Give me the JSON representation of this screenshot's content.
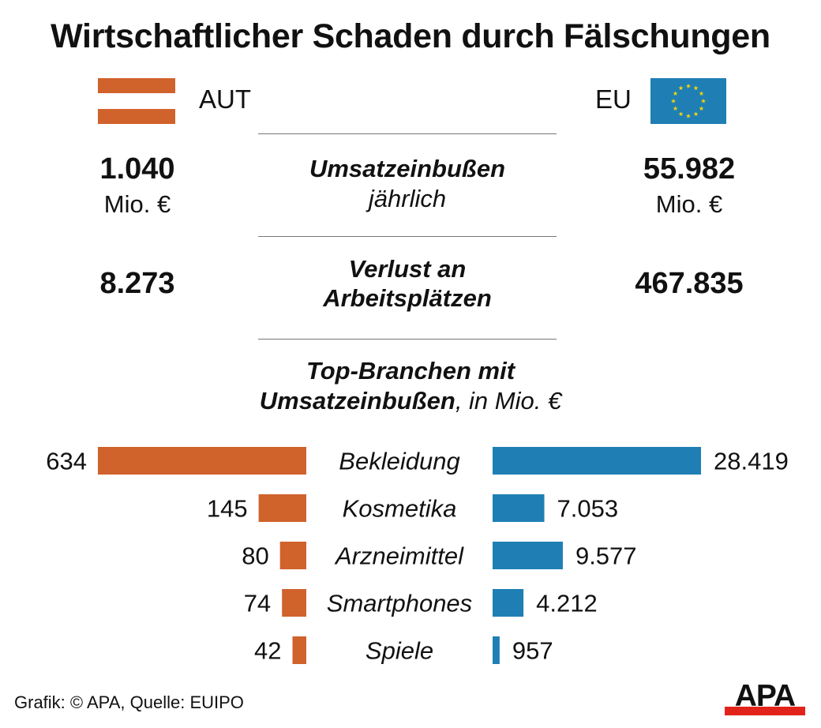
{
  "title": "Wirtschaftlicher Schaden durch Fälschungen",
  "left_label": "AUT",
  "right_label": "EU",
  "stats": {
    "revenue": {
      "label": "Umsatzeinbußen",
      "sublabel": "jährlich",
      "aut": "1.040",
      "eu": "55.982",
      "unit": "Mio. €"
    },
    "jobs": {
      "label_line1": "Verlust an",
      "label_line2": "Arbeitsplätzen",
      "aut": "8.273",
      "eu": "467.835"
    }
  },
  "branches_heading": {
    "line1": "Top-Branchen mit",
    "line2_bold": "Umsatzeinbußen",
    "line2_rest": ", in Mio. €"
  },
  "chart_data": {
    "type": "bar",
    "orientation": "horizontal-butterfly",
    "categories": [
      "Bekleidung",
      "Kosmetika",
      "Arzneimittel",
      "Smartphones",
      "Spiele"
    ],
    "series": [
      {
        "name": "AUT",
        "values": [
          634,
          145,
          80,
          74,
          42
        ],
        "labels": [
          "634",
          "145",
          "80",
          "74",
          "42"
        ],
        "color": "#d0622c"
      },
      {
        "name": "EU",
        "values": [
          28419,
          7053,
          9577,
          4212,
          957
        ],
        "labels": [
          "28.419",
          "7.053",
          "9.577",
          "4.212",
          "957"
        ],
        "color": "#1f7fb4"
      }
    ]
  },
  "footer": "Grafik: © APA, Quelle: EUIPO",
  "logo_text": "APA",
  "colors": {
    "aut": "#d0622c",
    "eu": "#1f7fb4",
    "eu_star": "#f5d20a",
    "logo_bar": "#e2231a"
  }
}
